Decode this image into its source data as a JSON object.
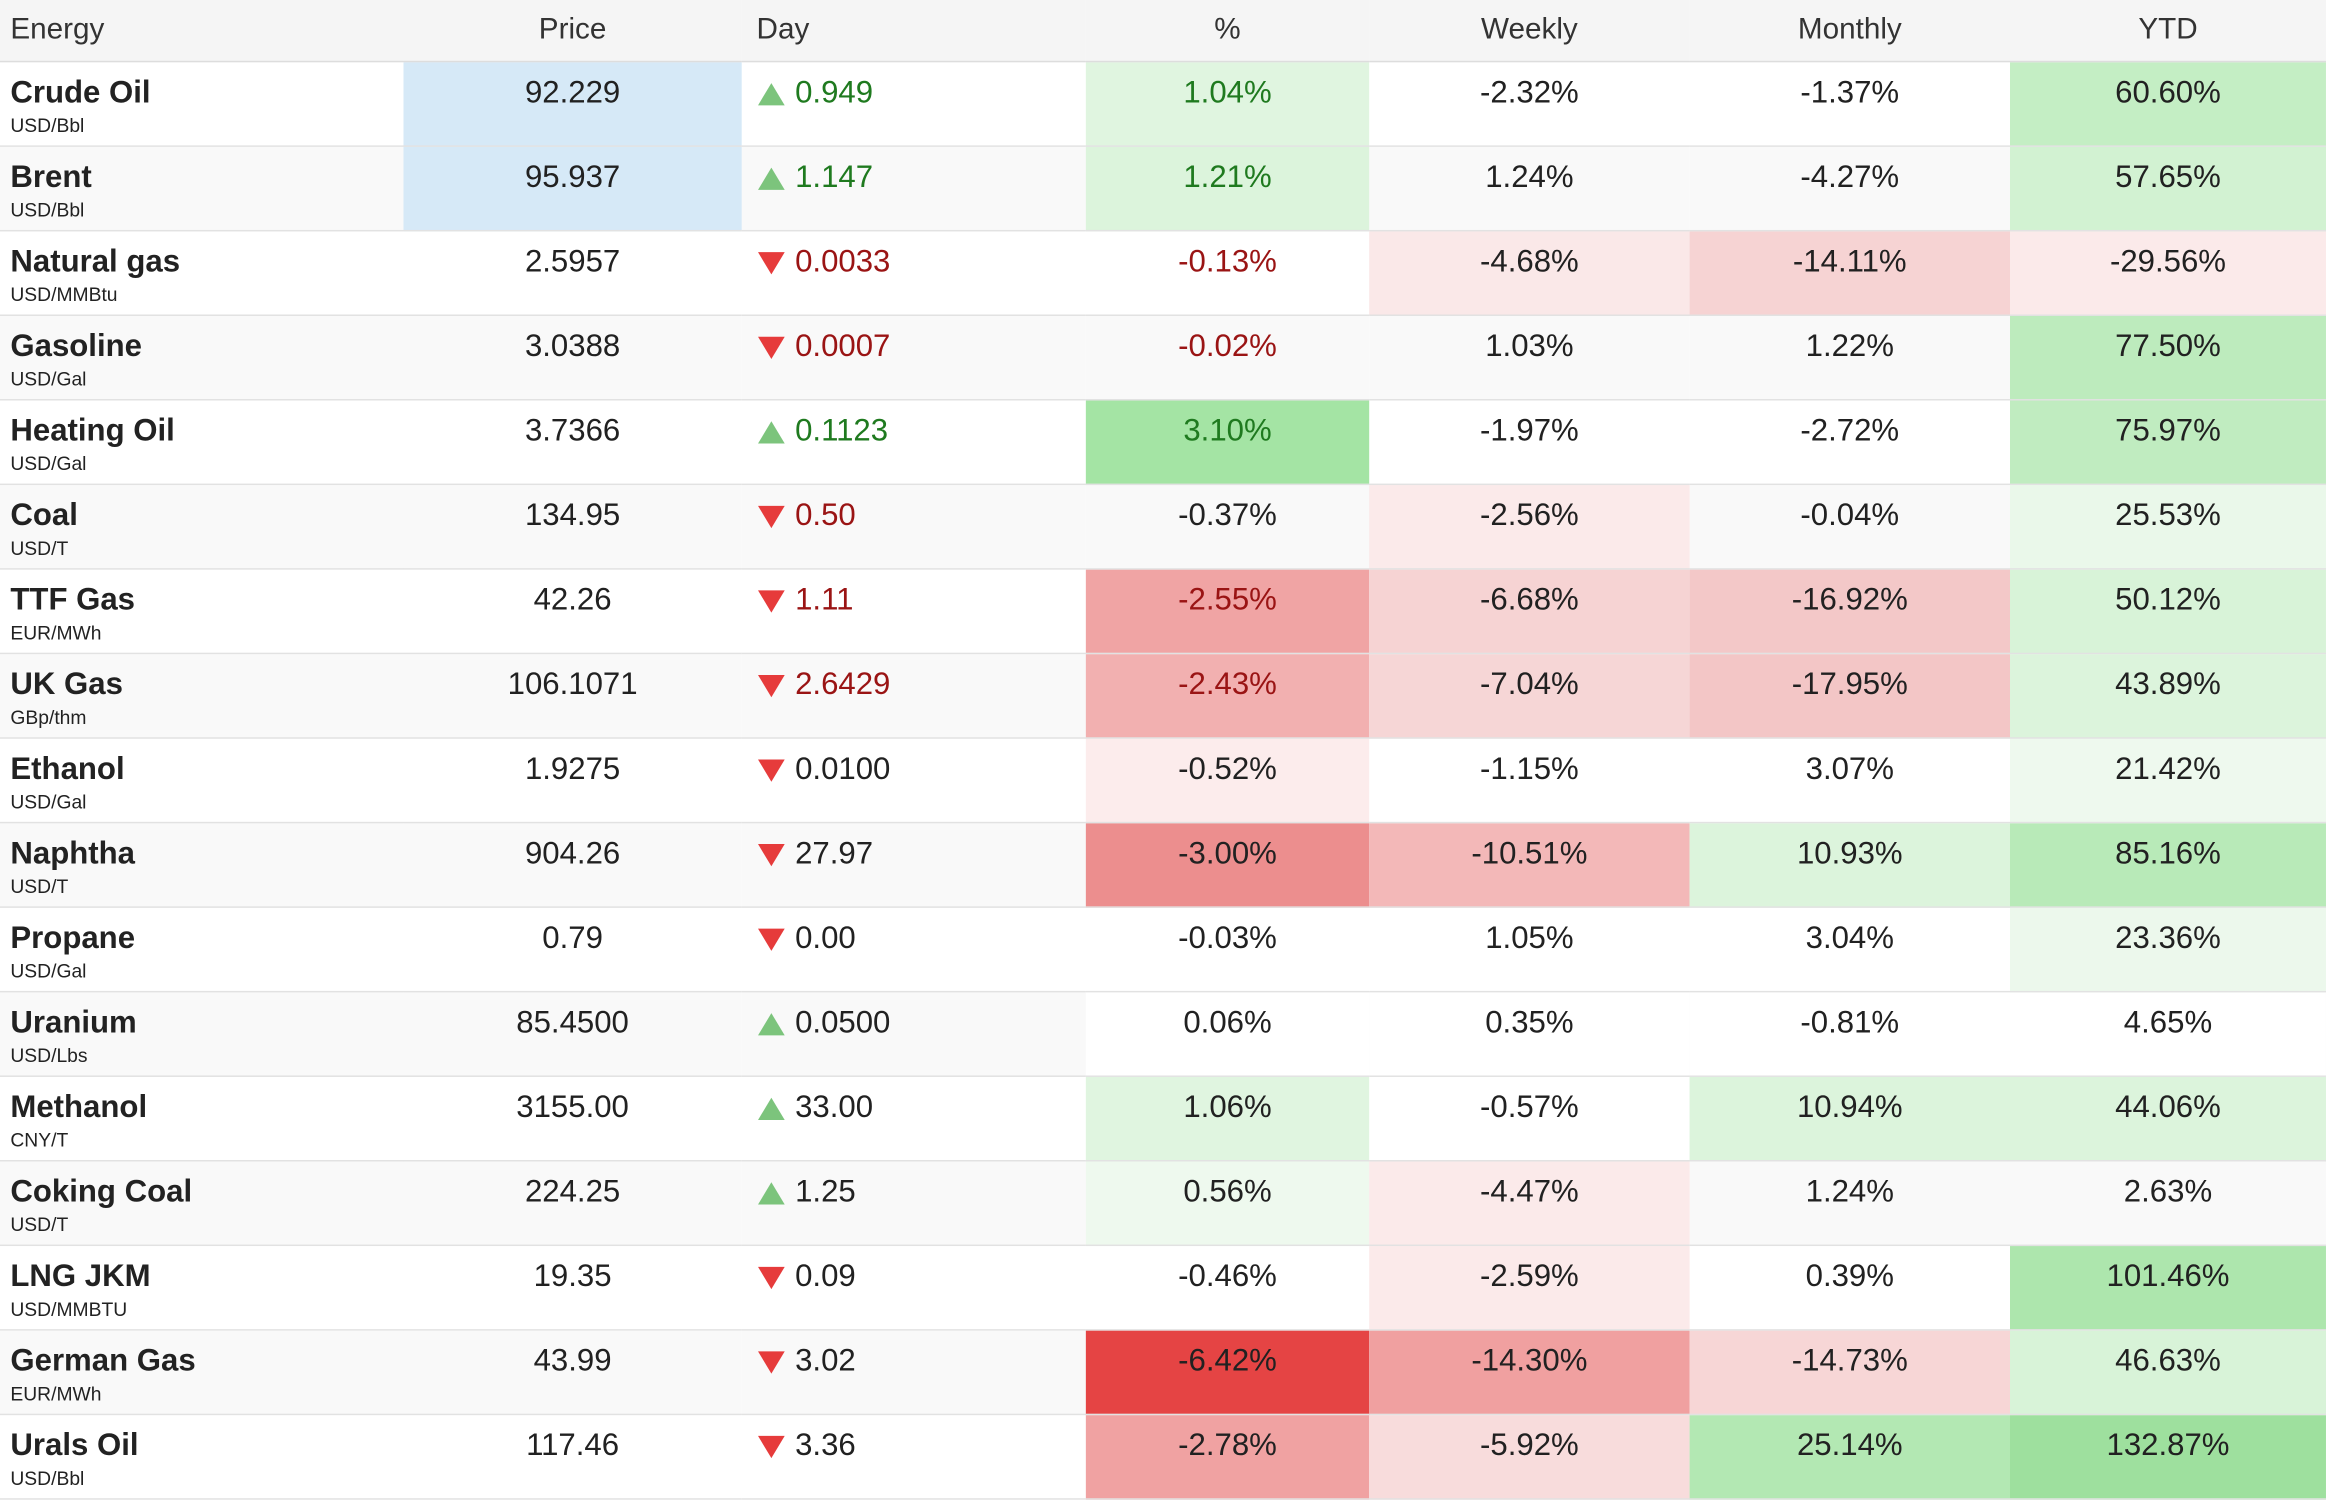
{
  "headers": {
    "energy": "Energy",
    "price": "Price",
    "day": "Day",
    "percent": "%",
    "weekly": "Weekly",
    "monthly": "Monthly",
    "ytd": "YTD"
  },
  "colors": {
    "up_arrow": "#7cc47c",
    "down_arrow": "#e63b3b",
    "positive_text": "#1f7a1f",
    "negative_text": "#9a1414",
    "price_highlight": "#d6e9f7"
  },
  "rows": [
    {
      "name": "Crude Oil",
      "unit": "USD/Bbl",
      "price": "92.229",
      "day_dir": "up",
      "day": "0.949",
      "day_color": "pos",
      "pct": "1.04%",
      "pct_color": "pos",
      "pct_bg": "#e0f5e0",
      "weekly": "-2.32%",
      "weekly_bg": "",
      "monthly": "-1.37%",
      "monthly_bg": "",
      "ytd": "60.60%",
      "ytd_bg": "#c4eec4",
      "price_highlight": true
    },
    {
      "name": "Brent",
      "unit": "USD/Bbl",
      "price": "95.937",
      "day_dir": "up",
      "day": "1.147",
      "day_color": "pos",
      "pct": "1.21%",
      "pct_color": "pos",
      "pct_bg": "#dcf4dc",
      "weekly": "1.24%",
      "weekly_bg": "",
      "monthly": "-4.27%",
      "monthly_bg": "",
      "ytd": "57.65%",
      "ytd_bg": "#d2f2d2",
      "price_highlight": true
    },
    {
      "name": "Natural gas",
      "unit": "USD/MMBtu",
      "price": "2.5957",
      "day_dir": "down",
      "day": "0.0033",
      "day_color": "neg",
      "pct": "-0.13%",
      "pct_color": "neg",
      "pct_bg": "",
      "weekly": "-4.68%",
      "weekly_bg": "#fae8e8",
      "monthly": "-14.11%",
      "monthly_bg": "#f6d3d3",
      "ytd": "-29.56%",
      "ytd_bg": "#fbeaea",
      "price_highlight": false
    },
    {
      "name": "Gasoline",
      "unit": "USD/Gal",
      "price": "3.0388",
      "day_dir": "down",
      "day": "0.0007",
      "day_color": "neg",
      "pct": "-0.02%",
      "pct_color": "neg",
      "pct_bg": "",
      "weekly": "1.03%",
      "weekly_bg": "",
      "monthly": "1.22%",
      "monthly_bg": "",
      "ytd": "77.50%",
      "ytd_bg": "#bdebbd",
      "price_highlight": false
    },
    {
      "name": "Heating Oil",
      "unit": "USD/Gal",
      "price": "3.7366",
      "day_dir": "up",
      "day": "0.1123",
      "day_color": "pos",
      "pct": "3.10%",
      "pct_color": "pos",
      "pct_bg": "#a4e4a4",
      "weekly": "-1.97%",
      "weekly_bg": "",
      "monthly": "-2.72%",
      "monthly_bg": "",
      "ytd": "75.97%",
      "ytd_bg": "#c0ecc0",
      "price_highlight": false
    },
    {
      "name": "Coal",
      "unit": "USD/T",
      "price": "134.95",
      "day_dir": "down",
      "day": "0.50",
      "day_color": "neg",
      "pct": "-0.37%",
      "pct_color": "neu",
      "pct_bg": "",
      "weekly": "-2.56%",
      "weekly_bg": "#fbeaea",
      "monthly": "-0.04%",
      "monthly_bg": "",
      "ytd": "25.53%",
      "ytd_bg": "#eaf8ea",
      "price_highlight": false
    },
    {
      "name": "TTF Gas",
      "unit": "EUR/MWh",
      "price": "42.26",
      "day_dir": "down",
      "day": "1.11",
      "day_color": "neg",
      "pct": "-2.55%",
      "pct_color": "neg",
      "pct_bg": "#f0a4a4",
      "weekly": "-6.68%",
      "weekly_bg": "#f6d3d3",
      "monthly": "-16.92%",
      "monthly_bg": "#f3c8c8",
      "ytd": "50.12%",
      "ytd_bg": "#d8f3d8",
      "price_highlight": false
    },
    {
      "name": "UK Gas",
      "unit": "GBp/thm",
      "price": "106.1071",
      "day_dir": "down",
      "day": "2.6429",
      "day_color": "neg",
      "pct": "-2.43%",
      "pct_color": "neg",
      "pct_bg": "#f2b0b0",
      "weekly": "-7.04%",
      "weekly_bg": "#f6d6d6",
      "monthly": "-17.95%",
      "monthly_bg": "#f3c6c6",
      "ytd": "43.89%",
      "ytd_bg": "#dcf4dc",
      "price_highlight": false
    },
    {
      "name": "Ethanol",
      "unit": "USD/Gal",
      "price": "1.9275",
      "day_dir": "down",
      "day": "0.0100",
      "day_color": "neu",
      "pct": "-0.52%",
      "pct_color": "neu",
      "pct_bg": "#fcecec",
      "weekly": "-1.15%",
      "weekly_bg": "",
      "monthly": "3.07%",
      "monthly_bg": "",
      "ytd": "21.42%",
      "ytd_bg": "#eef9ee",
      "price_highlight": false
    },
    {
      "name": "Naphtha",
      "unit": "USD/T",
      "price": "904.26",
      "day_dir": "down",
      "day": "27.97",
      "day_color": "neu",
      "pct": "-3.00%",
      "pct_color": "neu",
      "pct_bg": "#ec8e8e",
      "weekly": "-10.51%",
      "weekly_bg": "#f3b8b8",
      "monthly": "10.93%",
      "monthly_bg": "#dcf4dc",
      "ytd": "85.16%",
      "ytd_bg": "#b8eab8",
      "price_highlight": false
    },
    {
      "name": "Propane",
      "unit": "USD/Gal",
      "price": "0.79",
      "day_dir": "down",
      "day": "0.00",
      "day_color": "neu",
      "pct": "-0.03%",
      "pct_color": "neu",
      "pct_bg": "",
      "weekly": "1.05%",
      "weekly_bg": "",
      "monthly": "3.04%",
      "monthly_bg": "",
      "ytd": "23.36%",
      "ytd_bg": "#ecf8ec",
      "price_highlight": false
    },
    {
      "name": "Uranium",
      "unit": "USD/Lbs",
      "price": "85.4500",
      "day_dir": "up",
      "day": "0.0500",
      "day_color": "neu",
      "pct": "0.06%",
      "pct_color": "neu",
      "pct_bg": "#ffffff",
      "weekly": "0.35%",
      "weekly_bg": "#ffffff",
      "monthly": "-0.81%",
      "monthly_bg": "#ffffff",
      "ytd": "4.65%",
      "ytd_bg": "#ffffff",
      "price_highlight": false
    },
    {
      "name": "Methanol",
      "unit": "CNY/T",
      "price": "3155.00",
      "day_dir": "up",
      "day": "33.00",
      "day_color": "neu",
      "pct": "1.06%",
      "pct_color": "neu",
      "pct_bg": "#e0f5e0",
      "weekly": "-0.57%",
      "weekly_bg": "",
      "monthly": "10.94%",
      "monthly_bg": "#dcf4dc",
      "ytd": "44.06%",
      "ytd_bg": "#dcf4dc",
      "price_highlight": false
    },
    {
      "name": "Coking Coal",
      "unit": "USD/T",
      "price": "224.25",
      "day_dir": "up",
      "day": "1.25",
      "day_color": "neu",
      "pct": "0.56%",
      "pct_color": "neu",
      "pct_bg": "#eef9ee",
      "weekly": "-4.47%",
      "weekly_bg": "#fbeaea",
      "monthly": "1.24%",
      "monthly_bg": "",
      "ytd": "2.63%",
      "ytd_bg": "",
      "price_highlight": false
    },
    {
      "name": "LNG JKM",
      "unit": "USD/MMBTU",
      "price": "19.35",
      "day_dir": "down",
      "day": "0.09",
      "day_color": "neu",
      "pct": "-0.46%",
      "pct_color": "neu",
      "pct_bg": "",
      "weekly": "-2.59%",
      "weekly_bg": "#fbeaea",
      "monthly": "0.39%",
      "monthly_bg": "",
      "ytd": "101.46%",
      "ytd_bg": "#ade6ad",
      "price_highlight": false
    },
    {
      "name": "German Gas",
      "unit": "EUR/MWh",
      "price": "43.99",
      "day_dir": "down",
      "day": "3.02",
      "day_color": "neu",
      "pct": "-6.42%",
      "pct_color": "neu",
      "pct_bg": "#e54444",
      "weekly": "-14.30%",
      "weekly_bg": "#f0a0a0",
      "monthly": "-14.73%",
      "monthly_bg": "#f7d6d6",
      "ytd": "46.63%",
      "ytd_bg": "#d8f3d8",
      "price_highlight": false
    },
    {
      "name": "Urals Oil",
      "unit": "USD/Bbl",
      "price": "117.46",
      "day_dir": "down",
      "day": "3.36",
      "day_color": "neu",
      "pct": "-2.78%",
      "pct_color": "neu",
      "pct_bg": "#f0a2a2",
      "weekly": "-5.92%",
      "weekly_bg": "#f8dcdc",
      "monthly": "25.14%",
      "monthly_bg": "#b3e8b3",
      "ytd": "132.87%",
      "ytd_bg": "#9ee09e",
      "price_highlight": false
    }
  ]
}
